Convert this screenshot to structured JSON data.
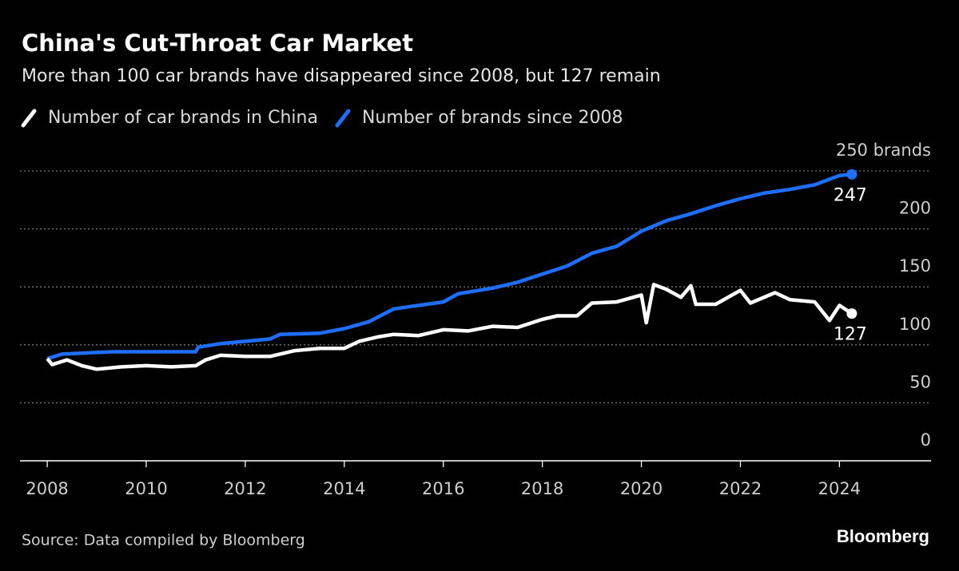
{
  "chart_data": {
    "type": "line",
    "title": "China's Cut-Throat Car Market",
    "subtitle": "More than 100 car brands have disappeared since 2008, but 127 remain",
    "source": "Source: Data compiled by Bloomberg",
    "brand": "Bloomberg",
    "xlim": [
      2007.45,
      2025.85
    ],
    "xticks": [
      2008,
      2010,
      2012,
      2014,
      2016,
      2018,
      2020,
      2022,
      2024
    ],
    "ylim": [
      0,
      250
    ],
    "yticks": [
      0,
      50,
      100,
      150,
      200,
      {
        "value": 250,
        "label": "250 brands"
      }
    ],
    "grid": true,
    "series": [
      {
        "name": "Number of car brands in China",
        "color": "#ffffff",
        "x": [
          2008.0,
          2008.1,
          2008.4,
          2008.7,
          2009.0,
          2009.5,
          2010.0,
          2010.5,
          2011.0,
          2011.2,
          2011.5,
          2012.0,
          2012.5,
          2013.0,
          2013.5,
          2014.0,
          2014.3,
          2014.7,
          2015.0,
          2015.5,
          2016.0,
          2016.5,
          2017.0,
          2017.5,
          2018.0,
          2018.3,
          2018.7,
          2019.0,
          2019.5,
          2020.0,
          2020.1,
          2020.25,
          2020.5,
          2020.8,
          2021.0,
          2021.1,
          2021.5,
          2022.0,
          2022.2,
          2022.7,
          2023.0,
          2023.5,
          2023.8,
          2024.0,
          2024.25
        ],
        "values": [
          88,
          83,
          87,
          82,
          79,
          81,
          82,
          81,
          82,
          87,
          91,
          90,
          90,
          95,
          97,
          97,
          103,
          107,
          109,
          108,
          113,
          112,
          116,
          115,
          122,
          125,
          125,
          136,
          137,
          143,
          119,
          152,
          148,
          141,
          151,
          135,
          135,
          147,
          136,
          145,
          139,
          137,
          121,
          134,
          127
        ]
      },
      {
        "name": "Number of brands since 2008",
        "color": "#1f6fff",
        "x": [
          2008.0,
          2008.3,
          2009.3,
          2011.0,
          2011.05,
          2011.5,
          2012.5,
          2012.7,
          2013.5,
          2014.0,
          2014.5,
          2015.0,
          2015.5,
          2016.0,
          2016.3,
          2017.0,
          2017.5,
          2018.0,
          2018.5,
          2019.0,
          2019.5,
          2020.0,
          2020.5,
          2021.0,
          2021.5,
          2022.0,
          2022.5,
          2023.0,
          2023.5,
          2024.0,
          2024.25
        ],
        "values": [
          88,
          92,
          94,
          94,
          98,
          101,
          105,
          109,
          110,
          114,
          120,
          131,
          134,
          137,
          144,
          149,
          154,
          161,
          168,
          179,
          185,
          198,
          207,
          213,
          220,
          226,
          231,
          234,
          238,
          246,
          247
        ]
      }
    ]
  }
}
